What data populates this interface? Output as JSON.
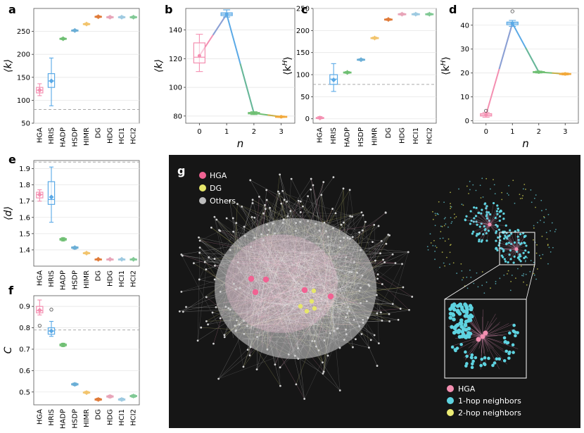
{
  "chart_data": [
    {
      "panel": "a",
      "type": "box",
      "ylabel": "⟨k⟩",
      "ylim": [
        50,
        300
      ],
      "yticks": [
        50,
        100,
        150,
        200,
        250
      ],
      "categories": [
        "HGA",
        "HRIS",
        "HADP",
        "HSDP",
        "HIMR",
        "DG",
        "HDG",
        "HCI1",
        "HCI2"
      ],
      "colors": [
        "#f48fb1",
        "#5aa9e6",
        "#6fbf73",
        "#6aaed6",
        "#f2c46d",
        "#e07b39",
        "#e8a4b8",
        "#9ecae1",
        "#81c995"
      ],
      "boxes": [
        [
          110,
          116,
          122,
          128,
          136
        ],
        [
          88,
          128,
          142,
          158,
          192
        ],
        [
          232,
          233,
          234,
          235,
          236
        ],
        [
          250,
          251,
          252,
          253,
          254
        ],
        [
          264,
          265,
          266,
          267,
          268
        ],
        [
          280,
          281,
          282,
          283,
          284
        ],
        [
          279,
          280,
          281,
          282,
          283
        ],
        [
          279,
          280,
          281,
          282,
          283
        ],
        [
          279,
          280,
          281,
          282,
          283
        ]
      ],
      "means": [
        122,
        142,
        234,
        252,
        266,
        282,
        281,
        281,
        281
      ],
      "reference": 80
    },
    {
      "panel": "b",
      "type": "line_box",
      "ylabel": "⟨k⟩",
      "xlabel": "n",
      "ylim": [
        75,
        155
      ],
      "yticks": [
        80,
        100,
        120,
        140
      ],
      "x": [
        0,
        1,
        2,
        3
      ],
      "boxes": [
        [
          111,
          117,
          121,
          131,
          137
        ],
        [
          149,
          150,
          151,
          152,
          154
        ],
        [
          81,
          81.5,
          82,
          82.5,
          83
        ],
        [
          79,
          79.3,
          79.5,
          79.8,
          80
        ]
      ],
      "means": [
        122,
        151,
        82,
        79.5
      ],
      "colors": [
        "#f48fb1",
        "#5aa9e6",
        "#6fbf73",
        "#f2a93b"
      ]
    },
    {
      "panel": "c",
      "type": "box",
      "ylabel": "⟨k^H⟩",
      "ylim": [
        -10,
        250
      ],
      "yticks": [
        0,
        50,
        100,
        150,
        200,
        250
      ],
      "categories": [
        "HGA",
        "HRIS",
        "HADP",
        "HSDP",
        "HIMR",
        "DG",
        "HDG",
        "HCI1",
        "HCI2"
      ],
      "colors": [
        "#f48fb1",
        "#5aa9e6",
        "#6fbf73",
        "#6aaed6",
        "#f2c46d",
        "#e07b39",
        "#e8a4b8",
        "#9ecae1",
        "#81c995"
      ],
      "boxes": [
        [
          0,
          1,
          2,
          3,
          5
        ],
        [
          62,
          78,
          90,
          100,
          125
        ],
        [
          103,
          104,
          105,
          106,
          107
        ],
        [
          132,
          133,
          134,
          135,
          136
        ],
        [
          181,
          182,
          183,
          184,
          185
        ],
        [
          223,
          224,
          225,
          226,
          227
        ],
        [
          235,
          236,
          237,
          238,
          239
        ],
        [
          235,
          236,
          237,
          238,
          239
        ],
        [
          235,
          236,
          237,
          238,
          239
        ]
      ],
      "means": [
        2,
        88,
        105,
        134,
        183,
        225,
        237,
        237,
        237
      ],
      "reference": 78
    },
    {
      "panel": "d",
      "type": "line_box",
      "ylabel": "⟨k^H⟩",
      "xlabel": "n",
      "ylim": [
        -1,
        47
      ],
      "yticks": [
        0,
        10,
        20,
        30,
        40
      ],
      "x": [
        0,
        1,
        2,
        3
      ],
      "boxes": [
        [
          1.5,
          2,
          2.5,
          3,
          3.5
        ],
        [
          39.5,
          40.2,
          40.8,
          41.3,
          42
        ],
        [
          20,
          20.2,
          20.4,
          20.6,
          20.8
        ],
        [
          19.2,
          19.4,
          19.6,
          19.8,
          20
        ]
      ],
      "means": [
        2.5,
        40.8,
        20.4,
        19.6
      ],
      "outliers": [
        [
          0,
          4.2
        ],
        [
          1,
          45.8
        ]
      ],
      "colors": [
        "#f48fb1",
        "#5aa9e6",
        "#6fbf73",
        "#f2a93b"
      ]
    },
    {
      "panel": "e",
      "type": "box",
      "ylabel": "⟨d⟩",
      "ylim": [
        1.3,
        1.95
      ],
      "yticks": [
        1.4,
        1.5,
        1.6,
        1.7,
        1.8,
        1.9
      ],
      "categories": [
        "HGA",
        "HRIS",
        "HADP",
        "HSDP",
        "HIMR",
        "DG",
        "HDG",
        "HCI1",
        "HCI2"
      ],
      "colors": [
        "#f48fb1",
        "#5aa9e6",
        "#6fbf73",
        "#6aaed6",
        "#f2c46d",
        "#e07b39",
        "#e8a4b8",
        "#9ecae1",
        "#81c995"
      ],
      "boxes": [
        [
          1.7,
          1.72,
          1.74,
          1.755,
          1.77
        ],
        [
          1.57,
          1.68,
          1.71,
          1.82,
          1.91
        ],
        [
          1.455,
          1.46,
          1.465,
          1.47,
          1.475
        ],
        [
          1.405,
          1.41,
          1.414,
          1.418,
          1.42
        ],
        [
          1.375,
          1.378,
          1.38,
          1.383,
          1.386
        ],
        [
          1.338,
          1.34,
          1.342,
          1.344,
          1.346
        ],
        [
          1.338,
          1.34,
          1.342,
          1.344,
          1.346
        ],
        [
          1.338,
          1.34,
          1.342,
          1.344,
          1.346
        ],
        [
          1.338,
          1.34,
          1.342,
          1.344,
          1.346
        ]
      ],
      "means": [
        1.74,
        1.725,
        1.465,
        1.414,
        1.38,
        1.342,
        1.342,
        1.342,
        1.342
      ],
      "reference": 1.94
    },
    {
      "panel": "f",
      "type": "box",
      "ylabel": "C",
      "ylim": [
        0.44,
        0.95
      ],
      "yticks": [
        0.5,
        0.6,
        0.7,
        0.8,
        0.9
      ],
      "categories": [
        "HGA",
        "HRIS",
        "HADP",
        "HSDP",
        "HIMR",
        "DG",
        "HDG",
        "HCI1",
        "HCI2"
      ],
      "colors": [
        "#f48fb1",
        "#5aa9e6",
        "#6fbf73",
        "#6aaed6",
        "#f2c46d",
        "#e07b39",
        "#e8a4b8",
        "#9ecae1",
        "#81c995"
      ],
      "boxes": [
        [
          0.86,
          0.87,
          0.88,
          0.9,
          0.93
        ],
        [
          0.76,
          0.77,
          0.785,
          0.8,
          0.83
        ],
        [
          0.712,
          0.716,
          0.72,
          0.724,
          0.728
        ],
        [
          0.53,
          0.533,
          0.536,
          0.539,
          0.542
        ],
        [
          0.493,
          0.495,
          0.497,
          0.5,
          0.503
        ],
        [
          0.46,
          0.462,
          0.465,
          0.468,
          0.471
        ],
        [
          0.473,
          0.476,
          0.479,
          0.482,
          0.485
        ],
        [
          0.46,
          0.462,
          0.465,
          0.468,
          0.471
        ],
        [
          0.475,
          0.478,
          0.481,
          0.484,
          0.487
        ]
      ],
      "means": [
        0.882,
        0.785,
        0.72,
        0.536,
        0.497,
        0.465,
        0.479,
        0.465,
        0.481
      ],
      "outliers": [
        [
          0,
          0.81
        ],
        [
          1,
          0.885
        ]
      ],
      "reference": 0.79
    }
  ],
  "panel_g": {
    "label": "g",
    "legend_top": [
      {
        "label": "HGA",
        "color": "#f06292"
      },
      {
        "label": "DG",
        "color": "#e6e66a"
      },
      {
        "label": "Others",
        "color": "#bdbdbd"
      }
    ],
    "legend_bottom": [
      {
        "label": "HGA",
        "color": "#f48fb1"
      },
      {
        "label": "1-hop neighbors",
        "color": "#5ed3e0"
      },
      {
        "label": "2-hop neighbors",
        "color": "#ecec74"
      }
    ],
    "background": "#161616"
  }
}
